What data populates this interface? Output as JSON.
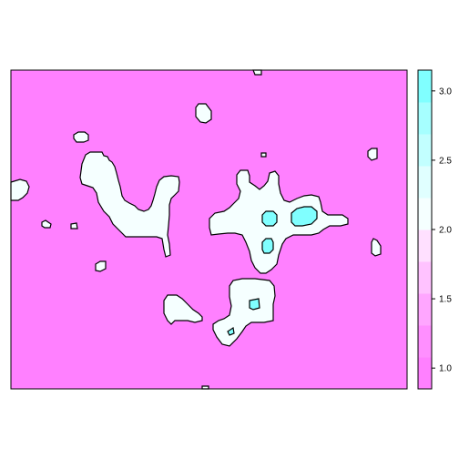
{
  "chart_data": {
    "type": "heatmap",
    "title": "",
    "xlabel": "",
    "ylabel": "",
    "colorkey": {
      "ticks": [
        {
          "value": 1.0,
          "label": "1.0"
        },
        {
          "value": 1.5,
          "label": "1.5"
        },
        {
          "value": 2.0,
          "label": "2.0"
        },
        {
          "value": 2.5,
          "label": "2.5"
        },
        {
          "value": 3.0,
          "label": "3.0"
        }
      ],
      "range": [
        0.85,
        3.15
      ],
      "bands": [
        {
          "from": 0.85,
          "to": 1.08,
          "color": "#ff80ff"
        },
        {
          "from": 1.08,
          "to": 1.31,
          "color": "#ff8fff"
        },
        {
          "from": 1.31,
          "to": 1.54,
          "color": "#ffa6ff"
        },
        {
          "from": 1.54,
          "to": 1.77,
          "color": "#ffc2ff"
        },
        {
          "from": 1.77,
          "to": 2.0,
          "color": "#ffe0ff"
        },
        {
          "from": 2.0,
          "to": 2.23,
          "color": "#f5ffff"
        },
        {
          "from": 2.23,
          "to": 2.46,
          "color": "#e0ffff"
        },
        {
          "from": 2.46,
          "to": 2.69,
          "color": "#c2ffff"
        },
        {
          "from": 2.69,
          "to": 2.92,
          "color": "#a6ffff"
        },
        {
          "from": 2.92,
          "to": 3.15,
          "color": "#80ffff"
        }
      ]
    },
    "levels": {
      "background": {
        "value": 1.0,
        "color": "#ff80ff"
      },
      "middle": {
        "value": 2.0,
        "color": "#f5ffff"
      },
      "high": {
        "value": 3.0,
        "color": "#80ffff"
      }
    }
  }
}
